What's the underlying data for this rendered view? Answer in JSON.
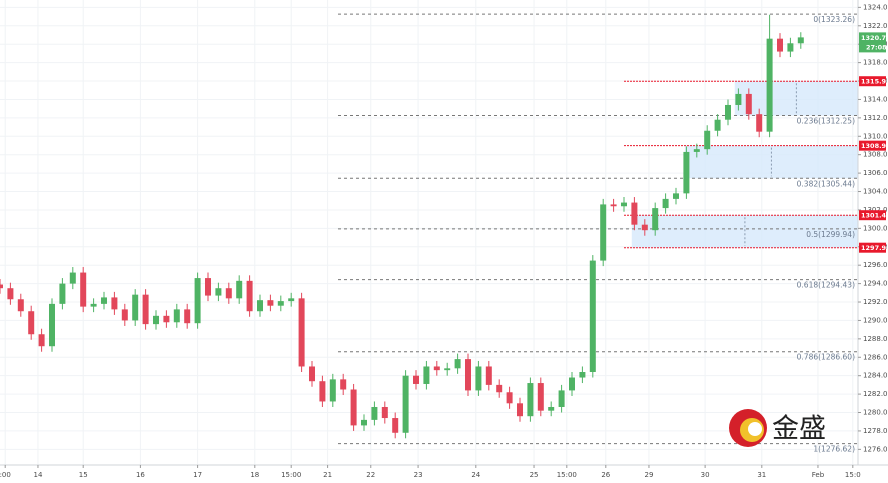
{
  "chart_data": {
    "type": "candlestick",
    "up_color": "#4fb364",
    "down_color": "#e2475a",
    "xlim": [
      0,
      165
    ],
    "xticks": [
      {
        "value": 1,
        "label": ":00"
      },
      {
        "value": 7.3,
        "label": "14"
      },
      {
        "value": 16,
        "label": "15"
      },
      {
        "value": 27,
        "label": "16"
      },
      {
        "value": 38,
        "label": "17"
      },
      {
        "value": 49,
        "label": "18"
      },
      {
        "value": 56,
        "label": "15:00"
      },
      {
        "value": 63,
        "label": "21"
      },
      {
        "value": 71.3,
        "label": "22"
      },
      {
        "value": 80.4,
        "label": "23"
      },
      {
        "value": 91.5,
        "label": "24"
      },
      {
        "value": 102.7,
        "label": "25"
      },
      {
        "value": 109,
        "label": "15:00"
      },
      {
        "value": 116.5,
        "label": "26"
      },
      {
        "value": 124.8,
        "label": "29"
      },
      {
        "value": 135.6,
        "label": "30"
      },
      {
        "value": 146.5,
        "label": "31"
      },
      {
        "value": 157.3,
        "label": "Feb"
      },
      {
        "value": 164,
        "label": "15:0"
      }
    ],
    "ylim": [
      1274.3,
      1324.8
    ],
    "yticks": [
      {
        "value": 1276,
        "label": "1276.00"
      },
      {
        "value": 1278,
        "label": "1278.00"
      },
      {
        "value": 1280,
        "label": "1280.00"
      },
      {
        "value": 1282,
        "label": "1282.00"
      },
      {
        "value": 1284,
        "label": "1284.00"
      },
      {
        "value": 1286,
        "label": "1286.00"
      },
      {
        "value": 1288,
        "label": "1288.00"
      },
      {
        "value": 1290,
        "label": "1290.00"
      },
      {
        "value": 1292,
        "label": "1292.00"
      },
      {
        "value": 1294,
        "label": "1294.00"
      },
      {
        "value": 1296,
        "label": "1296.00"
      },
      {
        "value": 1298,
        "label": "1298.00"
      },
      {
        "value": 1300,
        "label": "1300.00"
      },
      {
        "value": 1302,
        "label": "1302.00"
      },
      {
        "value": 1304,
        "label": "1304.00"
      },
      {
        "value": 1306,
        "label": "1306.00"
      },
      {
        "value": 1308,
        "label": "1308.00"
      },
      {
        "value": 1310,
        "label": "1310.00"
      },
      {
        "value": 1312,
        "label": "1312.00"
      },
      {
        "value": 1314,
        "label": "1314.00"
      },
      {
        "value": 1316,
        "label": "1316.00"
      },
      {
        "value": 1318,
        "label": "1318.00"
      },
      {
        "value": 1320,
        "label": "1320.00"
      },
      {
        "value": 1322,
        "label": "1322.00"
      },
      {
        "value": 1324,
        "label": "1324.00"
      }
    ],
    "grid": true,
    "x": [
      0,
      2,
      4,
      6,
      8,
      10,
      12,
      14,
      16,
      18,
      20,
      22,
      24,
      26,
      28,
      30,
      32,
      34,
      36,
      38,
      40,
      42,
      44,
      46,
      48,
      50,
      52,
      54,
      56,
      58,
      60,
      62,
      64,
      66,
      68,
      70,
      72,
      74,
      76,
      78,
      80,
      82,
      84,
      86,
      88,
      90,
      92,
      94,
      96,
      98,
      100,
      102,
      104,
      106,
      108,
      110,
      112,
      114,
      116,
      118,
      120,
      122,
      124,
      126,
      128,
      130,
      132,
      134,
      136,
      138,
      140,
      142,
      144,
      146,
      148,
      150,
      152,
      154
    ],
    "open": [
      1293.9,
      1293.5,
      1292.3,
      1291,
      1288.5,
      1287.2,
      1291.8,
      1294,
      1295.2,
      1291.5,
      1291.8,
      1292.5,
      1291.2,
      1290,
      1292.8,
      1289.6,
      1290.5,
      1289.8,
      1291.2,
      1289.7,
      1294.6,
      1292.7,
      1293.5,
      1292.4,
      1294.3,
      1291,
      1292.2,
      1291.6,
      1292.1,
      1292.4,
      1285,
      1283.4,
      1281.2,
      1283.6,
      1282.5,
      1278.6,
      1279.2,
      1280.6,
      1279.4,
      1277.8,
      1284,
      1283.1,
      1285,
      1284.6,
      1284.8,
      1285.8,
      1282.4,
      1285,
      1283,
      1282.2,
      1281,
      1279.6,
      1283.2,
      1280.2,
      1280.6,
      1282.4,
      1283.8,
      1284.4,
      1296.5,
      1302.6,
      1302.4,
      1302.8,
      1300.4,
      1299.8,
      1302.2,
      1303.2,
      1303.8,
      1308.3,
      1308.6,
      1310.6,
      1311.8,
      1313.4,
      1314.6,
      1312.4,
      1310.5,
      1320.6,
      1319.2,
      1320.1
    ],
    "high": [
      1294.5,
      1294.1,
      1292.9,
      1291.6,
      1289.1,
      1292.4,
      1294.6,
      1295.8,
      1295.8,
      1292.4,
      1293.1,
      1293.1,
      1291.8,
      1293.4,
      1293.4,
      1291.1,
      1291.1,
      1291.8,
      1291.8,
      1295.2,
      1295.2,
      1294.1,
      1294.1,
      1294.9,
      1294.9,
      1292.8,
      1292.8,
      1292.7,
      1293,
      1293,
      1285.6,
      1284,
      1284.2,
      1284.2,
      1283.1,
      1279.8,
      1281.2,
      1281.2,
      1280,
      1284.6,
      1284.6,
      1285.6,
      1285.6,
      1285.4,
      1286.4,
      1286.4,
      1285.6,
      1285.6,
      1283.6,
      1282.8,
      1281.6,
      1283.8,
      1283.8,
      1281.2,
      1283,
      1284.4,
      1285,
      1297.1,
      1303.2,
      1303.2,
      1303.4,
      1303.4,
      1301,
      1302.8,
      1303.8,
      1304.4,
      1308.9,
      1309.2,
      1311.2,
      1312.4,
      1314,
      1315.2,
      1315.2,
      1313,
      1323.2,
      1321.2,
      1320.7,
      1321.3
    ],
    "low": [
      1292.9,
      1291.7,
      1290.4,
      1287.9,
      1286.6,
      1286.6,
      1291.2,
      1293.4,
      1290.9,
      1290.9,
      1291.2,
      1290.6,
      1289.4,
      1289.4,
      1289,
      1289,
      1289.2,
      1289.2,
      1289.1,
      1289.1,
      1292.1,
      1292.1,
      1291.8,
      1291.8,
      1290.4,
      1290.4,
      1291,
      1291,
      1291.5,
      1284.4,
      1282.8,
      1280.6,
      1280.6,
      1281.9,
      1278,
      1278,
      1278.6,
      1278.8,
      1277.2,
      1277.2,
      1282.5,
      1282.5,
      1284,
      1284,
      1284.2,
      1281.8,
      1281.8,
      1282.4,
      1281.6,
      1280.4,
      1279,
      1279,
      1279.6,
      1279.6,
      1280,
      1281.8,
      1283.2,
      1283.8,
      1295.9,
      1301.8,
      1301.8,
      1299.8,
      1299.2,
      1299.2,
      1301.6,
      1302.6,
      1303.2,
      1307.7,
      1308,
      1310,
      1311.2,
      1312.8,
      1311.8,
      1309.9,
      1309.9,
      1318.6,
      1318.6,
      1319.5
    ],
    "close": [
      1293.5,
      1292.3,
      1291,
      1288.5,
      1287.2,
      1291.8,
      1294,
      1295.2,
      1291.5,
      1291.8,
      1292.5,
      1291.2,
      1290,
      1292.8,
      1289.6,
      1290.5,
      1289.8,
      1291.2,
      1289.7,
      1294.6,
      1292.7,
      1293.5,
      1292.4,
      1294.3,
      1291,
      1292.2,
      1291.6,
      1292.1,
      1292.4,
      1285,
      1283.4,
      1281.2,
      1283.6,
      1282.5,
      1278.6,
      1279.2,
      1280.6,
      1279.4,
      1277.8,
      1284,
      1283.1,
      1285,
      1284.6,
      1284.8,
      1285.8,
      1282.4,
      1285,
      1283,
      1282.2,
      1281,
      1279.6,
      1283.2,
      1280.2,
      1280.6,
      1282.4,
      1283.8,
      1284.4,
      1296.5,
      1302.6,
      1302.4,
      1302.8,
      1300.4,
      1299.8,
      1302.2,
      1303.2,
      1303.8,
      1308.3,
      1308.6,
      1310.6,
      1311.8,
      1313.4,
      1314.6,
      1312.4,
      1310.5,
      1320.6,
      1319.2,
      1320.1,
      1320.74
    ],
    "fib_start": 65,
    "fib_levels": [
      {
        "value": 1323.26,
        "label": "0(1323.26)"
      },
      {
        "value": 1312.25,
        "label": "0.236(1312.25)"
      },
      {
        "value": 1305.44,
        "label": "0.382(1305.44)"
      },
      {
        "value": 1299.94,
        "label": "0.5(1299.94)"
      },
      {
        "value": 1294.43,
        "label": "0.618(1294.43)"
      },
      {
        "value": 1286.6,
        "label": "0.786(1286.60)"
      },
      {
        "value": 1276.62,
        "label": "1(1276.62)"
      }
    ],
    "zones": [
      {
        "x": 141.3,
        "top": 1315.98,
        "bottom": 1312.25
      },
      {
        "x": 131.7,
        "top": 1308.98,
        "bottom": 1305.44
      },
      {
        "x": 121.5,
        "top": 1301.43,
        "bottom": 1297.9
      }
    ],
    "price_tags": [
      {
        "value": 1315.98,
        "label": "1315.98"
      },
      {
        "value": 1308.98,
        "label": "1308.98"
      },
      {
        "value": 1301.43,
        "label": "1301.43"
      },
      {
        "value": 1297.9,
        "label": "1297.90"
      }
    ],
    "tag_color": "#e8192c",
    "last_price": {
      "value": 1320.74,
      "label": "1320.74",
      "countdown": "27:08",
      "color": "#4fb364"
    },
    "logo": "金盛"
  }
}
